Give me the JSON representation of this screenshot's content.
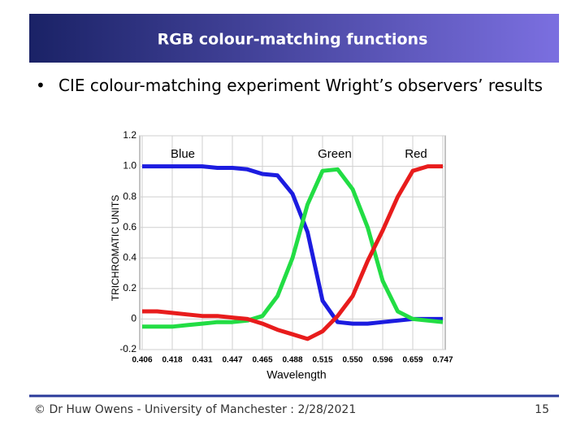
{
  "slide": {
    "title": "RGB colour-matching functions",
    "bullet": "CIE colour-matching experiment Wright’s observers’ results",
    "footer": "© Dr Huw Owens - University of Manchester : 2/28/2021",
    "page_number": "15"
  },
  "chart_data": {
    "type": "line",
    "y_label": "TRICHROMATIC UNITS",
    "x_label": "Wavelength",
    "categories": [
      "0.406",
      null,
      "0.418",
      null,
      "0.431",
      null,
      "0.447",
      null,
      "0.465",
      null,
      "0.488",
      null,
      "0.515",
      null,
      "0.550",
      null,
      "0.596",
      null,
      "0.659",
      null,
      "0.747"
    ],
    "series": [
      {
        "name": "Blue",
        "color": "#1c1ce0",
        "values": [
          1.0,
          1.0,
          1.0,
          1.0,
          1.0,
          0.99,
          0.99,
          0.98,
          0.95,
          0.94,
          0.82,
          0.57,
          0.12,
          -0.02,
          -0.03,
          -0.03,
          -0.02,
          -0.01,
          0,
          0,
          0
        ]
      },
      {
        "name": "Green",
        "color": "#22dd44",
        "values": [
          -0.05,
          -0.05,
          -0.05,
          -0.04,
          -0.03,
          -0.02,
          -0.02,
          -0.01,
          0.02,
          0.15,
          0.4,
          0.75,
          0.97,
          0.98,
          0.85,
          0.6,
          0.25,
          0.05,
          0,
          -0.01,
          -0.02
        ]
      },
      {
        "name": "Red",
        "color": "#e81c1c",
        "values": [
          0.05,
          0.05,
          0.04,
          0.03,
          0.02,
          0.02,
          0.01,
          0,
          -0.03,
          -0.07,
          -0.1,
          -0.13,
          -0.08,
          0.02,
          0.15,
          0.38,
          0.58,
          0.8,
          0.97,
          1.0,
          1.0
        ]
      }
    ],
    "ylim": [
      -0.2,
      1.2
    ],
    "yticks": [
      1.2,
      {
        "value": 1,
        "label": "1.0"
      },
      0.8,
      0.6,
      0.4,
      0.2,
      0,
      -0.2
    ],
    "grid": true
  }
}
